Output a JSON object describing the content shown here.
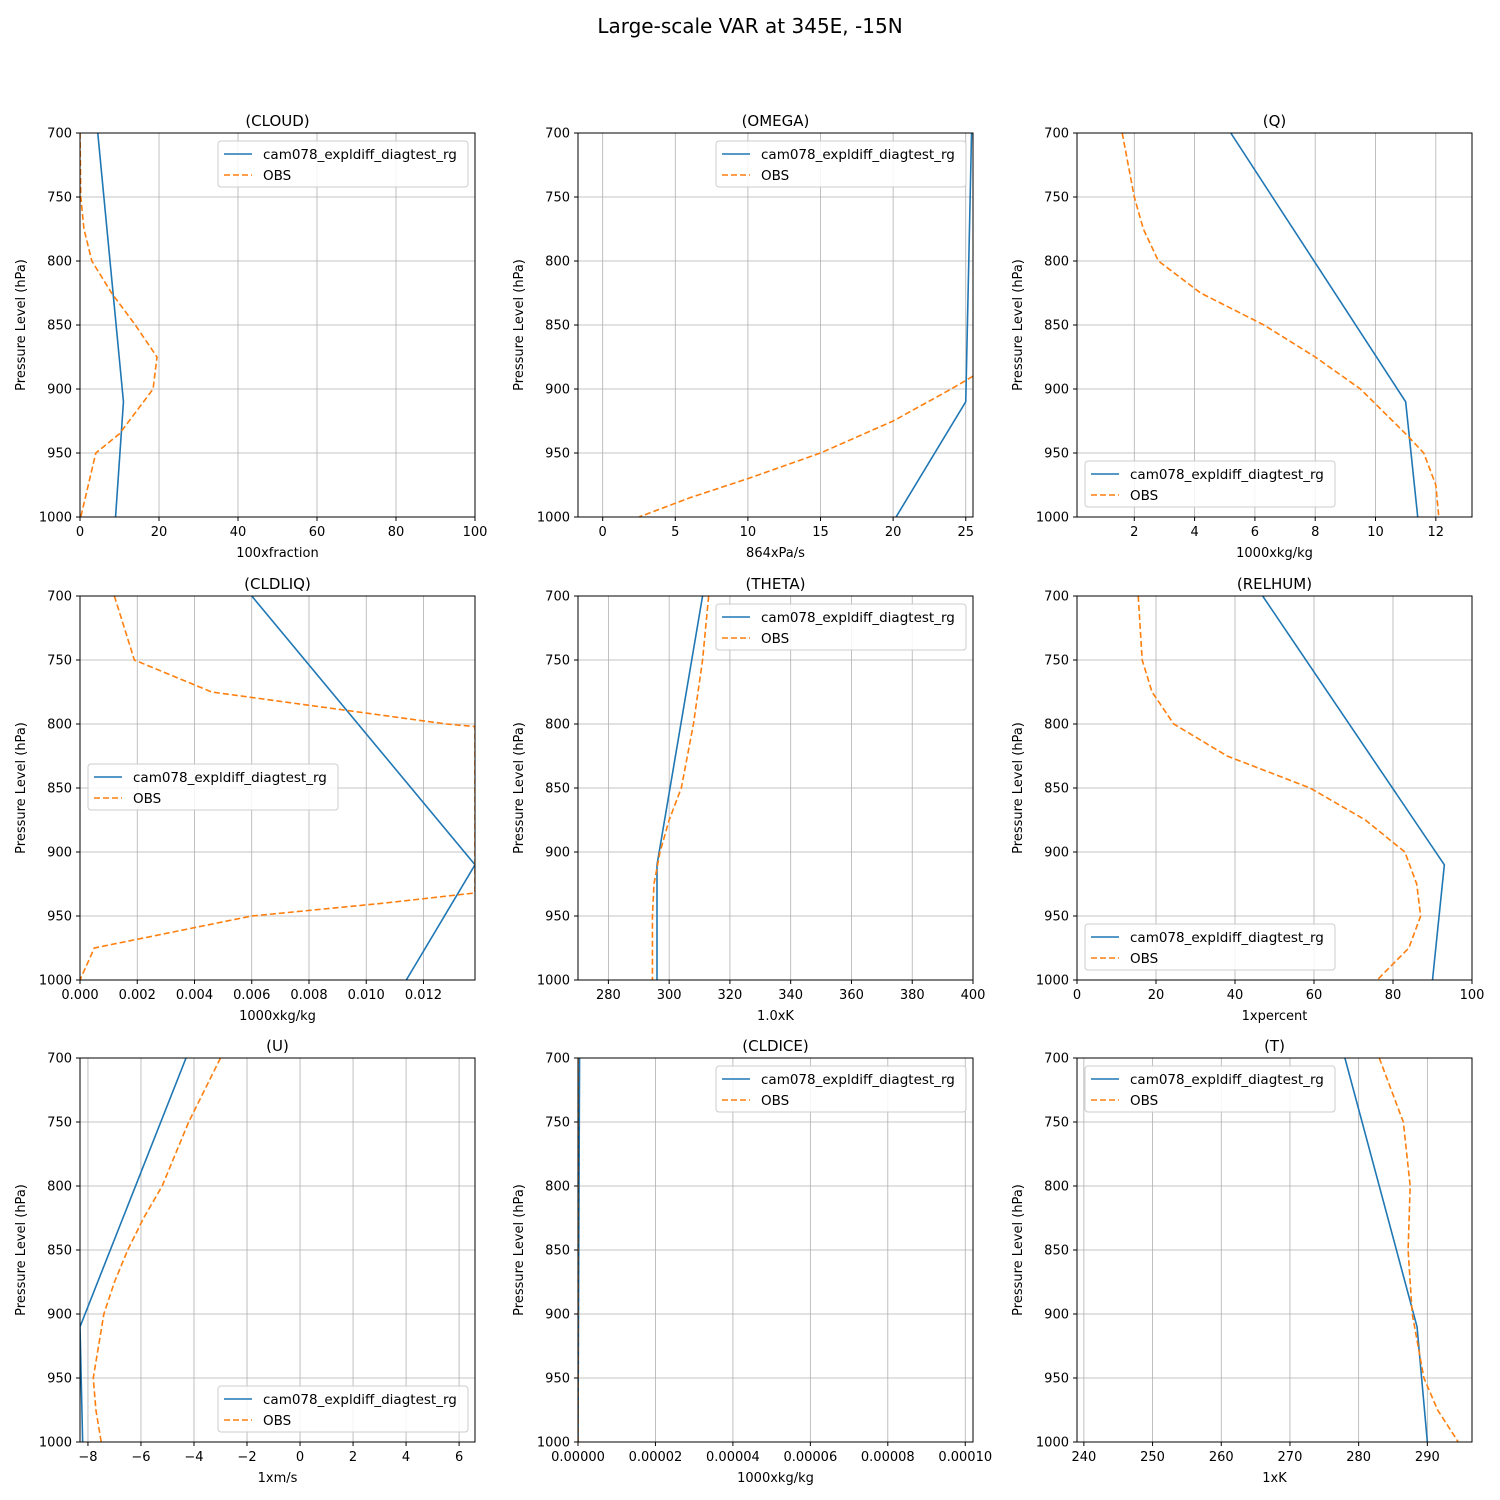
{
  "title": "Large-scale VAR at 345E, -15N",
  "colors": {
    "model": "#1f77b4",
    "obs": "#ff7f0e",
    "grid": "#b0b0b0",
    "axis": "#000000"
  },
  "chart_data": [
    {
      "type": "line",
      "title": "(CLOUD)",
      "xlabel": "100xfraction",
      "ylabel": "Pressure Level (hPa)",
      "xlim": [
        0,
        100
      ],
      "ylim": [
        1000,
        700
      ],
      "xticks": [
        0,
        20,
        40,
        60,
        80,
        100
      ],
      "xticklabels": [
        "0",
        "20",
        "40",
        "60",
        "80",
        "100"
      ],
      "yticks": [
        700,
        750,
        800,
        850,
        900,
        950,
        1000
      ],
      "grid": true,
      "legend": "upper right",
      "series": [
        {
          "name": "cam078_expldiff_diagtest_rg",
          "style": "solid",
          "x": [
            4.5,
            11,
            9
          ],
          "y": [
            700,
            910,
            1000
          ]
        },
        {
          "name": "OBS",
          "style": "dashed",
          "x": [
            0,
            0.2,
            1,
            3,
            8,
            14,
            19.5,
            18.5,
            10,
            4,
            0.2
          ],
          "y": [
            700,
            750,
            775,
            800,
            825,
            850,
            875,
            900,
            935,
            950,
            1000
          ]
        }
      ]
    },
    {
      "type": "line",
      "title": "(OMEGA)",
      "xlabel": "864xPa/s",
      "ylabel": "Pressure Level (hPa)",
      "xlim": [
        -1.7,
        25.5
      ],
      "ylim": [
        1000,
        700
      ],
      "xticks": [
        0,
        5,
        10,
        15,
        20,
        25
      ],
      "xticklabels": [
        "0",
        "5",
        "10",
        "15",
        "20",
        "25"
      ],
      "yticks": [
        700,
        750,
        800,
        850,
        900,
        950,
        1000
      ],
      "grid": true,
      "legend": "upper right",
      "series": [
        {
          "name": "cam078_expldiff_diagtest_rg",
          "style": "solid",
          "x": [
            25.4,
            25,
            20.2
          ],
          "y": [
            700,
            910,
            1000
          ]
        },
        {
          "name": "OBS",
          "style": "dashed",
          "x": [
            25.5,
            24,
            20,
            15,
            10,
            6,
            2.5
          ],
          "y": [
            890,
            900,
            925,
            950,
            970,
            985,
            1000
          ]
        }
      ]
    },
    {
      "type": "line",
      "title": "(Q)",
      "xlabel": "1000xkg/kg",
      "ylabel": "Pressure Level (hPa)",
      "xlim": [
        0.1,
        13.2
      ],
      "ylim": [
        1000,
        700
      ],
      "xticks": [
        2,
        4,
        6,
        8,
        10,
        12
      ],
      "xticklabels": [
        "2",
        "4",
        "6",
        "8",
        "10",
        "12"
      ],
      "yticks": [
        700,
        750,
        800,
        850,
        900,
        950,
        1000
      ],
      "grid": true,
      "legend": "lower left",
      "series": [
        {
          "name": "cam078_expldiff_diagtest_rg",
          "style": "solid",
          "x": [
            5.2,
            11,
            11.4
          ],
          "y": [
            700,
            910,
            1000
          ]
        },
        {
          "name": "OBS",
          "style": "dashed",
          "x": [
            1.6,
            2,
            2.3,
            2.8,
            4.2,
            6.3,
            8,
            9.5,
            11,
            11.6,
            12,
            12.1
          ],
          "y": [
            700,
            750,
            775,
            800,
            825,
            850,
            875,
            900,
            935,
            950,
            975,
            1000
          ]
        }
      ]
    },
    {
      "type": "line",
      "title": "(CLDLIQ)",
      "xlabel": "1000xkg/kg",
      "ylabel": "Pressure Level (hPa)",
      "xlim": [
        0,
        0.0138
      ],
      "ylim": [
        1000,
        700
      ],
      "xticks": [
        0,
        0.002,
        0.004,
        0.006,
        0.008,
        0.01,
        0.012
      ],
      "xticklabels": [
        "0.000",
        "0.002",
        "0.004",
        "0.006",
        "0.008",
        "0.010",
        "0.012"
      ],
      "yticks": [
        700,
        750,
        800,
        850,
        900,
        950,
        1000
      ],
      "grid": true,
      "legend": "center left",
      "series": [
        {
          "name": "cam078_expldiff_diagtest_rg",
          "style": "solid",
          "x": [
            0.006,
            0.0138,
            0.0114
          ],
          "y": [
            700,
            910,
            1000
          ]
        },
        {
          "name": "OBS",
          "style": "dashed",
          "x": [
            0.0012,
            0.0019,
            0.0046,
            0.0128,
            0.0138,
            0.0138,
            0.0106,
            0.006,
            0.0005,
            0
          ],
          "y": [
            700,
            750,
            775,
            800,
            802,
            932,
            940,
            950,
            975,
            1000
          ]
        }
      ]
    },
    {
      "type": "line",
      "title": "(THETA)",
      "xlabel": "1.0xK",
      "ylabel": "Pressure Level (hPa)",
      "xlim": [
        270,
        400
      ],
      "ylim": [
        1000,
        700
      ],
      "xticks": [
        280,
        300,
        320,
        340,
        360,
        380,
        400
      ],
      "xticklabels": [
        "280",
        "300",
        "320",
        "340",
        "360",
        "380",
        "400"
      ],
      "yticks": [
        700,
        750,
        800,
        850,
        900,
        950,
        1000
      ],
      "grid": true,
      "legend": "upper right",
      "series": [
        {
          "name": "cam078_expldiff_diagtest_rg",
          "style": "solid",
          "x": [
            311,
            296,
            296
          ],
          "y": [
            700,
            910,
            1000
          ]
        },
        {
          "name": "OBS",
          "style": "dashed",
          "x": [
            313,
            311,
            308,
            304,
            300,
            297,
            295,
            294.5,
            294.5
          ],
          "y": [
            700,
            750,
            800,
            850,
            875,
            900,
            925,
            950,
            1000
          ]
        }
      ]
    },
    {
      "type": "line",
      "title": "(RELHUM)",
      "xlabel": "1xpercent",
      "ylabel": "Pressure Level (hPa)",
      "xlim": [
        0,
        100
      ],
      "ylim": [
        1000,
        700
      ],
      "xticks": [
        0,
        20,
        40,
        60,
        80,
        100
      ],
      "xticklabels": [
        "0",
        "20",
        "40",
        "60",
        "80",
        "100"
      ],
      "yticks": [
        700,
        750,
        800,
        850,
        900,
        950,
        1000
      ],
      "grid": true,
      "legend": "lower left",
      "series": [
        {
          "name": "cam078_expldiff_diagtest_rg",
          "style": "solid",
          "x": [
            47,
            93,
            90
          ],
          "y": [
            700,
            910,
            1000
          ]
        },
        {
          "name": "OBS",
          "style": "dashed",
          "x": [
            15.5,
            16.5,
            19,
            24.5,
            38,
            59,
            73,
            83,
            86,
            87,
            84,
            76
          ],
          "y": [
            700,
            750,
            775,
            800,
            825,
            850,
            875,
            900,
            925,
            950,
            975,
            1000
          ]
        }
      ]
    },
    {
      "type": "line",
      "title": "(U)",
      "xlabel": "1xm/s",
      "ylabel": "Pressure Level (hPa)",
      "xlim": [
        -8.3,
        6.6
      ],
      "ylim": [
        1000,
        700
      ],
      "xticks": [
        -8,
        -6,
        -4,
        -2,
        0,
        2,
        4,
        6
      ],
      "xticklabels": [
        "−8",
        "−6",
        "−4",
        "−2",
        "0",
        "2",
        "4",
        "6"
      ],
      "yticks": [
        700,
        750,
        800,
        850,
        900,
        950,
        1000
      ],
      "grid": true,
      "legend": "lower right",
      "series": [
        {
          "name": "cam078_expldiff_diagtest_rg",
          "style": "solid",
          "x": [
            -4.3,
            -8.3,
            -8.2
          ],
          "y": [
            700,
            910,
            1000
          ]
        },
        {
          "name": "OBS",
          "style": "dashed",
          "x": [
            -3,
            -4.2,
            -5.2,
            -5.9,
            -6.5,
            -7,
            -7.4,
            -7.8,
            -7.7,
            -7.5
          ],
          "y": [
            700,
            750,
            800,
            825,
            850,
            875,
            900,
            950,
            975,
            1000
          ]
        }
      ]
    },
    {
      "type": "line",
      "title": "(CLDICE)",
      "xlabel": "1000xkg/kg",
      "ylabel": "Pressure Level (hPa)",
      "xlim": [
        0,
        0.000102
      ],
      "ylim": [
        1000,
        700
      ],
      "xticks": [
        0,
        2e-05,
        4e-05,
        6e-05,
        8e-05,
        0.0001
      ],
      "xticklabels": [
        "0.00000",
        "0.00002",
        "0.00004",
        "0.00006",
        "0.00008",
        "0.00010"
      ],
      "yticks": [
        700,
        750,
        800,
        850,
        900,
        950,
        1000
      ],
      "grid": true,
      "legend": "upper right",
      "series": [
        {
          "name": "cam078_expldiff_diagtest_rg",
          "style": "solid",
          "x": [
            4e-07,
            2e-07,
            0
          ],
          "y": [
            700,
            850,
            1000
          ]
        },
        {
          "name": "OBS",
          "style": "dashed",
          "x": [
            0,
            0
          ],
          "y": [
            700,
            1000
          ]
        }
      ]
    },
    {
      "type": "line",
      "title": "(T)",
      "xlabel": "1xK",
      "ylabel": "Pressure Level (hPa)",
      "xlim": [
        239,
        296.5
      ],
      "ylim": [
        1000,
        700
      ],
      "xticks": [
        240,
        250,
        260,
        270,
        280,
        290
      ],
      "xticklabels": [
        "240",
        "250",
        "260",
        "270",
        "280",
        "290"
      ],
      "yticks": [
        700,
        750,
        800,
        850,
        900,
        950,
        1000
      ],
      "grid": true,
      "legend": "upper left",
      "series": [
        {
          "name": "cam078_expldiff_diagtest_rg",
          "style": "solid",
          "x": [
            278,
            288.5,
            290
          ],
          "y": [
            700,
            910,
            1000
          ]
        },
        {
          "name": "OBS",
          "style": "dashed",
          "x": [
            283,
            286.5,
            287.5,
            287.2,
            287.8,
            289.5,
            291.5,
            294.5
          ],
          "y": [
            700,
            750,
            800,
            850,
            900,
            950,
            975,
            1000
          ]
        }
      ]
    }
  ]
}
